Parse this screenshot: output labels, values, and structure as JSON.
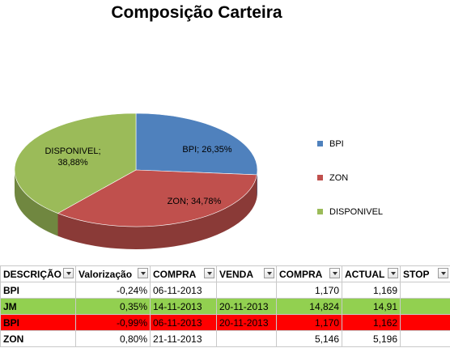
{
  "chart_data": {
    "type": "pie",
    "title": "Composição Carteira",
    "three_d": true,
    "slices": [
      {
        "name": "BPI",
        "value": 26.35,
        "label": "BPI; 26,35%",
        "color": "#4f81bd"
      },
      {
        "name": "ZON",
        "value": 34.78,
        "label": "ZON; 34,78%",
        "color": "#c0504d"
      },
      {
        "name": "DISPONIVEL",
        "value": 38.88,
        "label_line1": "DISPONIVEL;",
        "label_line2": "38,88%",
        "color": "#9bbb59"
      }
    ],
    "legend_placement": "right"
  },
  "table": {
    "headers": [
      "DESCRIÇÃO",
      "Valorização",
      "COMPRA",
      "VENDA",
      "COMPRA",
      "ACTUAL",
      "STOP"
    ],
    "rows": [
      {
        "desc": "BPI",
        "val": "-0,24%",
        "compra_date": "06-11-2013",
        "venda": "",
        "compra": "1,170",
        "actual": "1,169",
        "stop": "",
        "highlight": "none"
      },
      {
        "desc": "JM",
        "val": "0,35%",
        "compra_date": "14-11-2013",
        "venda": "20-11-2013",
        "compra": "14,824",
        "actual": "14,91",
        "stop": "",
        "highlight": "green"
      },
      {
        "desc": "BPI",
        "val": "-0,99%",
        "compra_date": "06-11-2013",
        "venda": "20-11-2013",
        "compra": "1,170",
        "actual": "1,162",
        "stop": "",
        "highlight": "red"
      },
      {
        "desc": "ZON",
        "val": "0,80%",
        "compra_date": "21-11-2013",
        "venda": "",
        "compra": "5,146",
        "actual": "5,196",
        "stop": "",
        "highlight": "none"
      }
    ]
  }
}
